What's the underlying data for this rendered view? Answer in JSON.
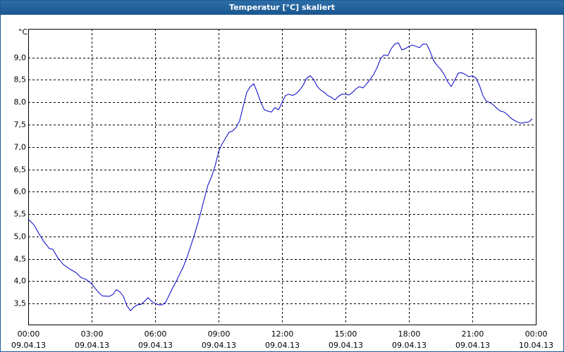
{
  "chart_data": {
    "type": "line",
    "title": "Temperatur [°C] skaliert",
    "y_unit": "°C",
    "color": "#0000c8",
    "grid": true,
    "xlim": [
      0,
      24
    ],
    "ylim": [
      3.03,
      9.64
    ],
    "xticks": [
      {
        "value": 0,
        "label": [
          "00:00",
          "09.04.13"
        ]
      },
      {
        "value": 3,
        "label": [
          "03:00",
          "09.04.13"
        ]
      },
      {
        "value": 6,
        "label": [
          "06:00",
          "09.04.13"
        ]
      },
      {
        "value": 9,
        "label": [
          "09:00",
          "09.04.13"
        ]
      },
      {
        "value": 12,
        "label": [
          "12:00",
          "09.04.13"
        ]
      },
      {
        "value": 15,
        "label": [
          "15:00",
          "09.04.13"
        ]
      },
      {
        "value": 18,
        "label": [
          "18:00",
          "09.04.13"
        ]
      },
      {
        "value": 21,
        "label": [
          "21:00",
          "09.04.13"
        ]
      },
      {
        "value": 24,
        "label": [
          "00:00",
          "10.04.13"
        ]
      }
    ],
    "yticks": [
      {
        "value": 3.5,
        "label": "3,5"
      },
      {
        "value": 4,
        "label": "4,0"
      },
      {
        "value": 4.5,
        "label": "4,5"
      },
      {
        "value": 5,
        "label": "5,0"
      },
      {
        "value": 5.5,
        "label": "5,5"
      },
      {
        "value": 6,
        "label": "6,0"
      },
      {
        "value": 6.5,
        "label": "6,5"
      },
      {
        "value": 7,
        "label": "7,0"
      },
      {
        "value": 7.5,
        "label": "7,5"
      },
      {
        "value": 8,
        "label": "8,0"
      },
      {
        "value": 8.5,
        "label": "8,5"
      },
      {
        "value": 9,
        "label": "9,0"
      }
    ],
    "x": [
      0,
      0.267,
      0.5,
      0.733,
      1,
      1.167,
      1.4,
      1.667,
      2,
      2.267,
      2.5,
      2.733,
      3,
      3.267,
      3.5,
      3.833,
      4,
      4.167,
      4.333,
      4.5,
      4.667,
      4.833,
      5,
      5.167,
      5.333,
      5.5,
      5.667,
      5.833,
      6,
      6.167,
      6.333,
      6.5,
      6.667,
      6.833,
      7,
      7.167,
      7.333,
      7.5,
      7.667,
      7.833,
      8,
      8.167,
      8.333,
      8.5,
      8.667,
      8.833,
      9,
      9.167,
      9.333,
      9.5,
      9.667,
      9.833,
      10,
      10.167,
      10.333,
      10.5,
      10.667,
      10.833,
      11,
      11.167,
      11.333,
      11.5,
      11.667,
      11.833,
      12,
      12.167,
      12.333,
      12.5,
      12.667,
      12.833,
      13,
      13.167,
      13.333,
      13.5,
      13.667,
      13.833,
      14,
      14.167,
      14.333,
      14.5,
      14.667,
      14.833,
      15,
      15.167,
      15.333,
      15.5,
      15.667,
      15.833,
      16,
      16.167,
      16.333,
      16.5,
      16.667,
      16.833,
      17,
      17.167,
      17.333,
      17.5,
      17.667,
      17.833,
      18,
      18.167,
      18.333,
      18.5,
      18.667,
      18.833,
      19,
      19.167,
      19.333,
      19.5,
      19.667,
      19.833,
      20,
      20.167,
      20.333,
      20.5,
      20.667,
      20.833,
      21,
      21.167,
      21.333,
      21.5,
      21.667,
      21.833,
      22,
      22.167,
      22.333,
      22.5,
      22.667,
      22.833,
      23,
      23.167,
      23.333,
      23.5,
      23.667,
      23.833
    ],
    "values": [
      5.39,
      5.26,
      5.07,
      4.89,
      4.73,
      4.71,
      4.52,
      4.37,
      4.26,
      4.19,
      4.08,
      4.04,
      3.94,
      3.78,
      3.67,
      3.66,
      3.7,
      3.81,
      3.76,
      3.66,
      3.45,
      3.34,
      3.42,
      3.47,
      3.48,
      3.55,
      3.63,
      3.55,
      3.5,
      3.47,
      3.47,
      3.53,
      3.69,
      3.85,
      4.0,
      4.16,
      4.32,
      4.52,
      4.76,
      5.0,
      5.26,
      5.55,
      5.86,
      6.15,
      6.33,
      6.57,
      6.89,
      7.07,
      7.2,
      7.33,
      7.36,
      7.44,
      7.59,
      7.91,
      8.22,
      8.35,
      8.41,
      8.22,
      7.99,
      7.83,
      7.8,
      7.78,
      7.88,
      7.83,
      7.99,
      8.15,
      8.18,
      8.15,
      8.19,
      8.27,
      8.38,
      8.54,
      8.59,
      8.51,
      8.35,
      8.27,
      8.22,
      8.15,
      8.11,
      8.05,
      8.13,
      8.18,
      8.18,
      8.16,
      8.22,
      8.3,
      8.35,
      8.32,
      8.41,
      8.51,
      8.62,
      8.78,
      8.98,
      9.06,
      9.04,
      9.2,
      9.3,
      9.33,
      9.17,
      9.2,
      9.25,
      9.28,
      9.25,
      9.22,
      9.3,
      9.3,
      9.14,
      8.93,
      8.82,
      8.74,
      8.62,
      8.46,
      8.35,
      8.49,
      8.65,
      8.66,
      8.62,
      8.57,
      8.59,
      8.54,
      8.38,
      8.15,
      8.02,
      7.99,
      7.94,
      7.86,
      7.8,
      7.78,
      7.72,
      7.64,
      7.59,
      7.55,
      7.53,
      7.55,
      7.56,
      7.63
    ]
  }
}
